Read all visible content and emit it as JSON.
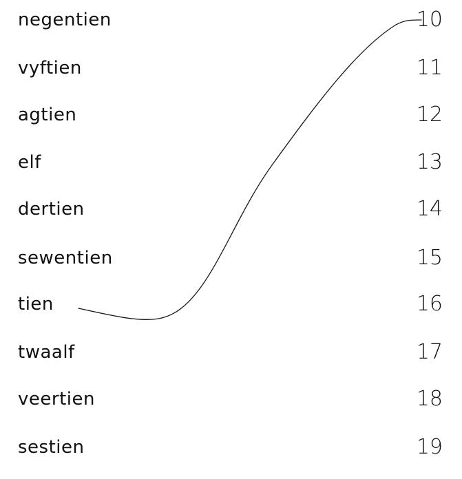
{
  "words": [
    "negentien",
    "vyftien",
    "agtien",
    "elf",
    "dertien",
    "sewentien",
    "tien",
    "twaalf",
    "veertien",
    "sestien"
  ],
  "numbers": [
    "10",
    "11",
    "12",
    "13",
    "14",
    "15",
    "16",
    "17",
    "18",
    "19"
  ],
  "matches": [
    {
      "word": "tien",
      "number": "10"
    }
  ]
}
